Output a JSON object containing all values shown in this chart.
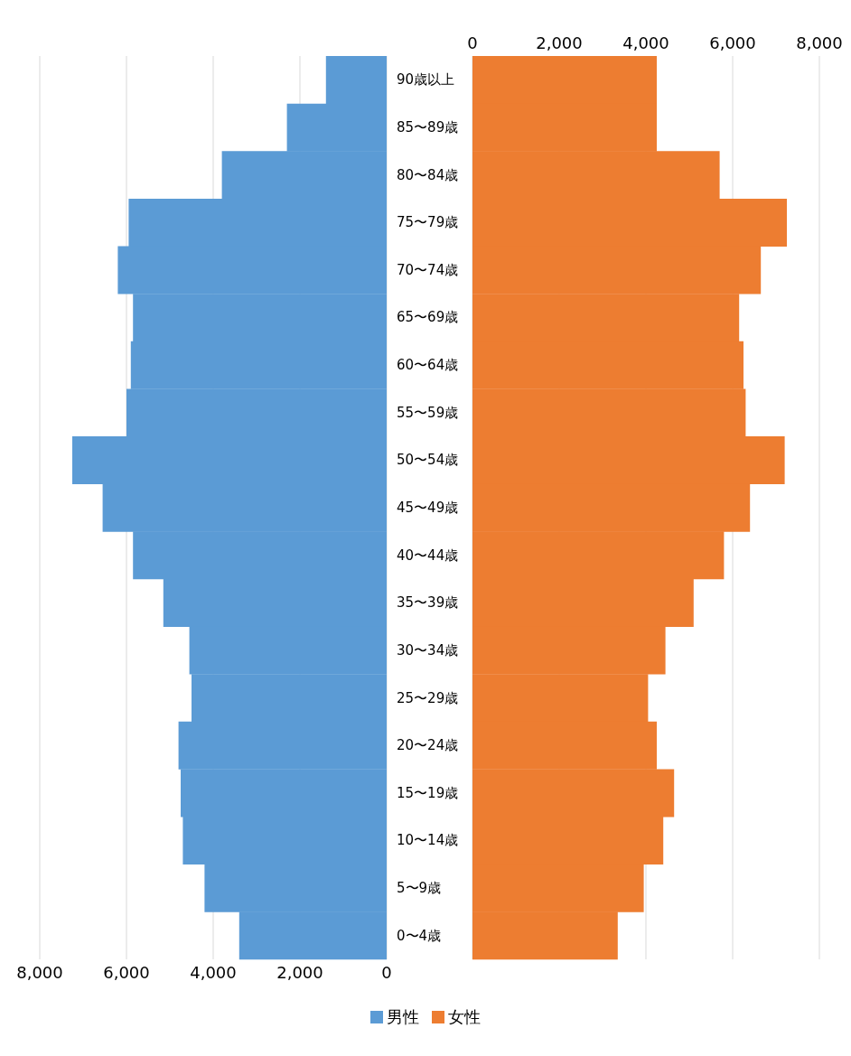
{
  "chart_data": [
    {
      "type": "bar",
      "orientation": "horizontal",
      "categories": [
        "90歳以上",
        "85〜89歳",
        "80〜84歳",
        "75〜79歳",
        "70〜74歳",
        "65〜69歳",
        "60〜64歳",
        "55〜59歳",
        "50〜54歳",
        "45〜49歳",
        "40〜44歳",
        "35〜39歳",
        "30〜34歳",
        "25〜29歳",
        "20〜24歳",
        "15〜19歳",
        "10〜14歳",
        "5〜9歳",
        "0〜4歳"
      ],
      "series": [
        {
          "name": "男性",
          "color": "#5b9bd5",
          "values": [
            1400,
            2300,
            3800,
            5950,
            6200,
            5850,
            5900,
            6000,
            7250,
            6550,
            5850,
            5150,
            4550,
            4500,
            4800,
            4750,
            4700,
            4200,
            3400
          ]
        }
      ],
      "xlim": [
        8000,
        0
      ],
      "xticks": [
        {
          "value": 8000,
          "label": "8,000"
        },
        {
          "value": 6000,
          "label": "6,000"
        },
        {
          "value": 4000,
          "label": "4,000"
        },
        {
          "value": 2000,
          "label": "2,000"
        },
        0
      ],
      "grid": "x",
      "legend": "bottom"
    },
    {
      "type": "bar",
      "orientation": "horizontal",
      "categories": [
        null,
        null,
        null,
        null,
        null,
        null,
        null,
        null,
        null,
        null,
        null,
        null,
        null,
        null,
        null,
        null,
        null,
        null,
        null
      ],
      "tick_labels": "x",
      "series": [
        {
          "name": "女性",
          "color": "#ed7d31",
          "values": [
            4250,
            4250,
            5700,
            7250,
            6650,
            6150,
            6250,
            6300,
            7200,
            6400,
            5800,
            5100,
            4450,
            4050,
            4250,
            4650,
            4400,
            3950,
            3350
          ]
        }
      ],
      "xlim": [
        0,
        8000
      ],
      "xticks": [
        0,
        {
          "value": 2000,
          "label": "2,000"
        },
        {
          "value": 4000,
          "label": "4,000"
        },
        {
          "value": 6000,
          "label": "6,000"
        },
        {
          "value": 8000,
          "label": "8,000"
        }
      ],
      "grid": "x",
      "legend": "bottom"
    }
  ]
}
